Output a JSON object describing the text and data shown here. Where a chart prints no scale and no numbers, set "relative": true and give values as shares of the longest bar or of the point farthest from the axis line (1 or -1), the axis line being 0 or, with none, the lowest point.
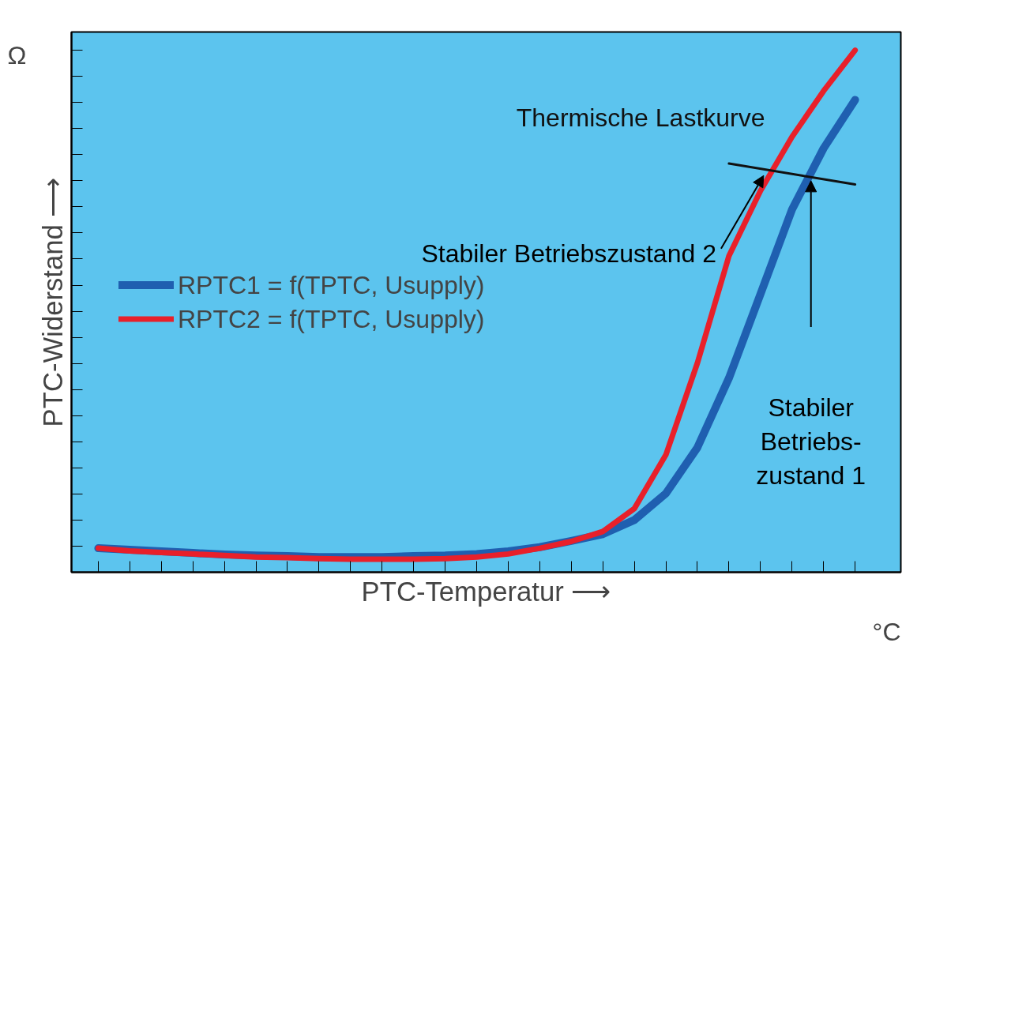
{
  "chart_data": {
    "type": "line",
    "relative": true,
    "xlabel": "PTC-Temperatur ⟶",
    "ylabel": "PTC-Widerstand ⟶",
    "legend": "left",
    "line_style": "solid",
    "marker": "none",
    "grid": false,
    "categories": [
      null,
      null,
      null,
      null,
      null,
      null,
      null,
      null,
      null,
      null,
      null,
      null,
      null,
      null,
      null,
      null,
      null,
      null,
      null,
      null,
      null,
      null,
      null,
      null,
      null
    ],
    "series": [
      {
        "name": "RPTC1 = f(TPTC, Usupply)",
        "color": "#1f5fb0",
        "values": [
          0.046,
          0.043,
          0.04,
          0.037,
          0.034,
          0.032,
          0.031,
          0.029,
          0.029,
          0.029,
          0.031,
          0.032,
          0.035,
          0.04,
          0.048,
          0.06,
          0.073,
          0.1,
          0.151,
          0.239,
          0.372,
          0.533,
          0.695,
          0.812,
          0.905
        ]
      },
      {
        "name": "RPTC2 = f(TPTC, Usupply)",
        "color": "#e8202a",
        "values": [
          0.046,
          0.041,
          0.038,
          0.035,
          0.032,
          0.029,
          0.028,
          0.026,
          0.025,
          0.025,
          0.025,
          0.026,
          0.029,
          0.035,
          0.046,
          0.059,
          0.078,
          0.122,
          0.225,
          0.401,
          0.606,
          0.731,
          0.834,
          0.922,
          1
        ]
      },
      {
        "name": "Thermische Lastkurve",
        "color": "#111111",
        "values": [
          null,
          null,
          null,
          null,
          null,
          null,
          null,
          null,
          null,
          null,
          null,
          null,
          null,
          null,
          null,
          null,
          null,
          null,
          null,
          null,
          0.783,
          null,
          null,
          null,
          0.743
        ]
      }
    ],
    "annotations": [
      "Stabiler Betriebszustand 2",
      "Stabiler\nBetriebs-\nzustand 1",
      "°C",
      "Ω"
    ]
  }
}
